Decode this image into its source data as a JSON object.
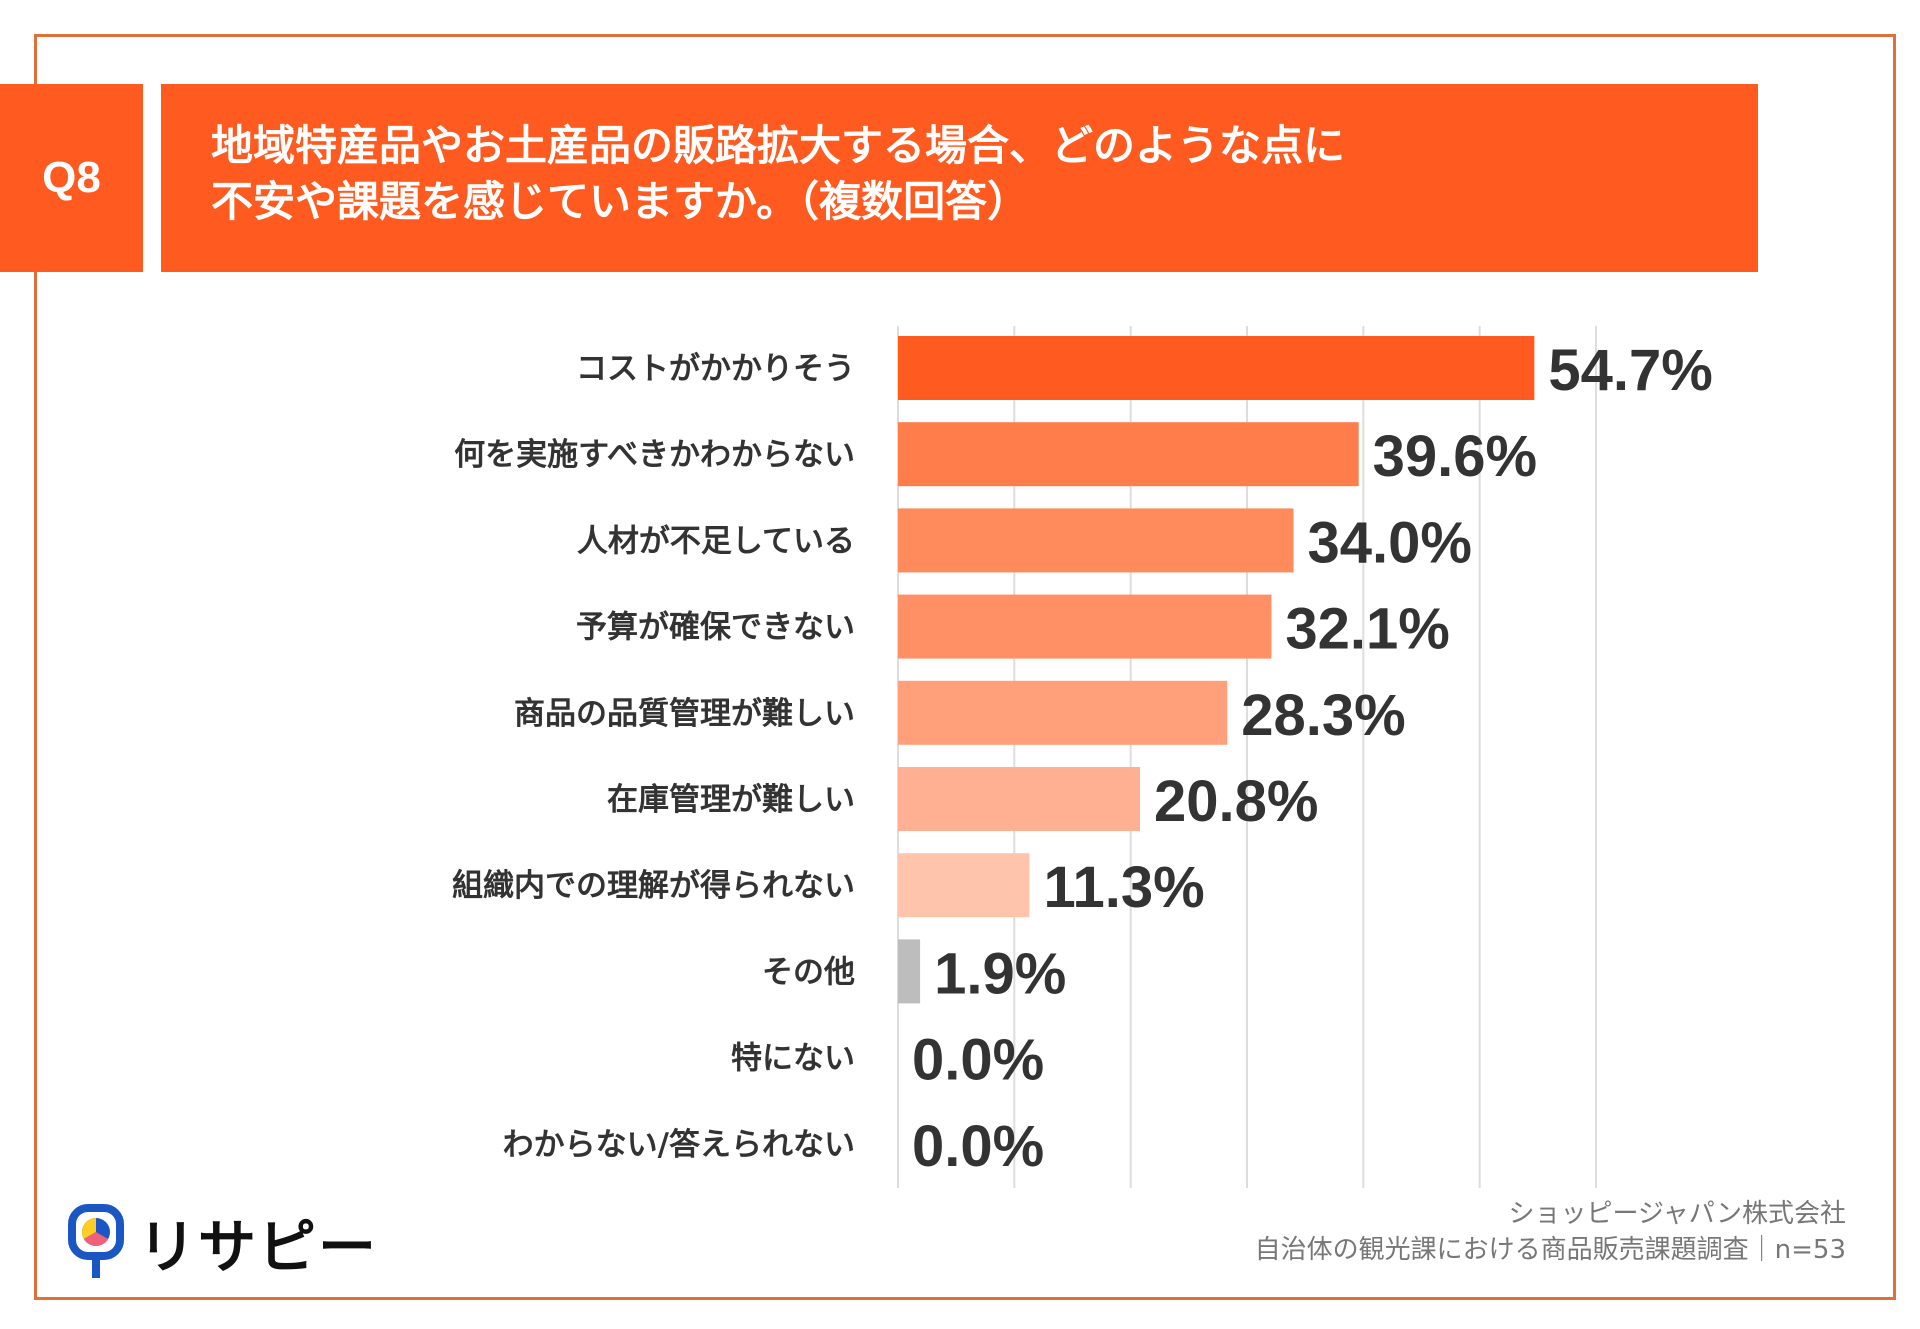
{
  "header": {
    "question_no": "Q8",
    "title_lines": [
      "地域特産品やお土産品の販路拡大する場合、どのような点に",
      "不安や課題を感じていますか。（複数回答）"
    ]
  },
  "colors": {
    "accent": "#ff5a1f",
    "frame": "#e0703a",
    "grid": "#dddddd",
    "other": "#bdbdbd"
  },
  "chart_data": {
    "type": "bar",
    "orientation": "horizontal",
    "categories": [
      "コストがかかりそう",
      "何を実施すべきかわからない",
      "人材が不足している",
      "予算が確保できない",
      "商品の品質管理が難しい",
      "在庫管理が難しい",
      "組織内での理解が得られない",
      "その他",
      "特にない",
      "わからない/答えられない"
    ],
    "values": [
      54.7,
      39.6,
      34.0,
      32.1,
      28.3,
      20.8,
      11.3,
      1.9,
      0.0,
      0.0
    ],
    "value_labels": [
      "54.7%",
      "39.6%",
      "34.0%",
      "32.1%",
      "28.3%",
      "20.8%",
      "11.3%",
      "1.9%",
      "0.0%",
      "0.0%"
    ],
    "bar_colors": [
      "#ff5a1f",
      "#ff7d4b",
      "#ff8a5c",
      "#ff9066",
      "#ffa07b",
      "#ffb092",
      "#ffc4ab",
      "#bdbdbd",
      "#bdbdbd",
      "#bdbdbd"
    ],
    "xlim": [
      0,
      60
    ],
    "grid": true,
    "grid_step": 10,
    "legend": "none"
  },
  "footer": {
    "company": "ショッピージャパン株式会社",
    "survey": "自治体の観光課における商品販売課題調査｜n=53"
  },
  "logo": {
    "text": "リサピー",
    "colors": [
      "#1a56c4",
      "#ffcc22",
      "#f0607a"
    ]
  }
}
